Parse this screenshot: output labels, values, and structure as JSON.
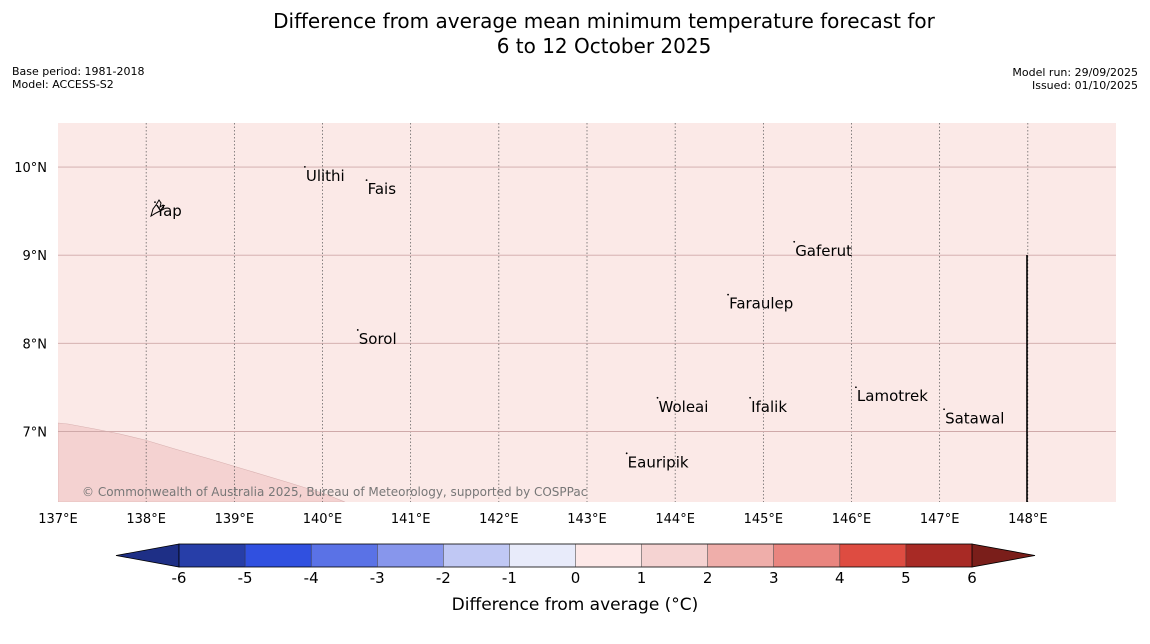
{
  "title": {
    "line1": "Difference from average mean minimum temperature forecast for",
    "line2": "6 to 12 October 2025"
  },
  "meta": {
    "base_period": "Base period: 1981-2018",
    "model": "Model: ACCESS-S2",
    "model_run": "Model run: 29/09/2025",
    "issued": "Issued: 01/10/2025"
  },
  "map": {
    "lon_range": [
      137,
      149
    ],
    "lat_range": [
      6.2,
      10.5
    ],
    "lon_ticks": [
      "137°E",
      "138°E",
      "139°E",
      "140°E",
      "141°E",
      "142°E",
      "143°E",
      "144°E",
      "145°E",
      "146°E",
      "147°E",
      "148°E"
    ],
    "lat_ticks": [
      "10°N",
      "9°N",
      "8°N",
      "7°N"
    ],
    "background_anomaly_class": "0 to 1",
    "background_color": "#fbe9e7",
    "warm_region_class": "1 to 2",
    "warm_region_color": "#f4d2d1",
    "places": [
      {
        "name": "Ulithi",
        "lon": 139.8,
        "lat": 9.9
      },
      {
        "name": "Fais",
        "lon": 140.5,
        "lat": 9.75
      },
      {
        "name": "Yap",
        "lon": 138.1,
        "lat": 9.5
      },
      {
        "name": "Gaferut",
        "lon": 145.35,
        "lat": 9.05
      },
      {
        "name": "Faraulep",
        "lon": 144.6,
        "lat": 8.45
      },
      {
        "name": "Sorol",
        "lon": 140.4,
        "lat": 8.05
      },
      {
        "name": "Lamotrek",
        "lon": 146.05,
        "lat": 7.4
      },
      {
        "name": "Woleai",
        "lon": 143.8,
        "lat": 7.28
      },
      {
        "name": "Ifalik",
        "lon": 144.85,
        "lat": 7.28
      },
      {
        "name": "Satawal",
        "lon": 147.05,
        "lat": 7.15
      },
      {
        "name": "Eauripik",
        "lon": 143.45,
        "lat": 6.65
      }
    ],
    "copyright": "© Commonwealth of Australia 2025, Bureau of Meteorology, supported by COSPPac"
  },
  "colorbar": {
    "label": "Difference from average (°C)",
    "ticks": [
      "-6",
      "-5",
      "-4",
      "-3",
      "-2",
      "-1",
      "0",
      "1",
      "2",
      "3",
      "4",
      "5",
      "6"
    ],
    "colors": [
      "#273ea8",
      "#3050e0",
      "#5a72e6",
      "#8796ec",
      "#c0c8f4",
      "#e8ebfa",
      "#fde9e8",
      "#f5d3d2",
      "#efaeaa",
      "#e9857f",
      "#de4c41",
      "#a82a25"
    ],
    "extend_low_color": "#1e2f86",
    "extend_high_color": "#7a1e1a"
  }
}
